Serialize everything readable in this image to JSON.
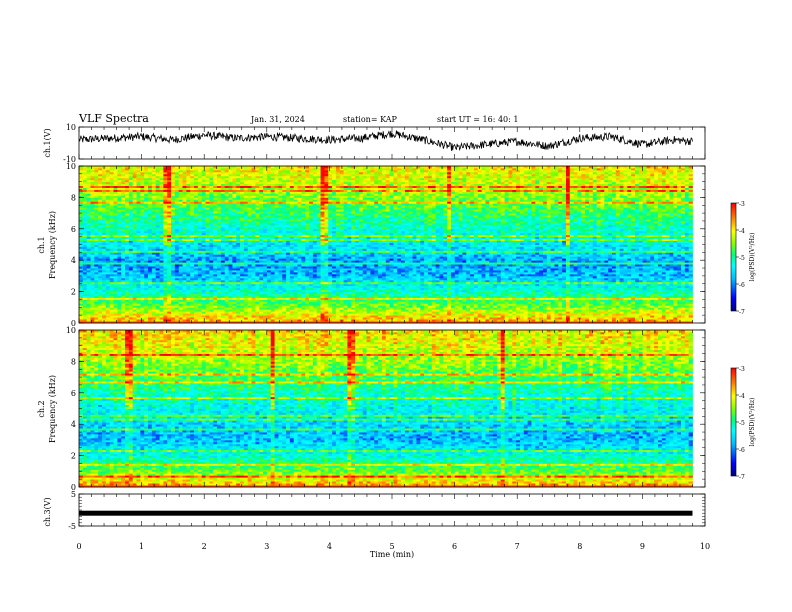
{
  "header": {
    "title": "VLF Spectra",
    "date": "Jan. 31, 2024",
    "station": "station= KAP",
    "start": "start  UT  =   16: 40: 1"
  },
  "colors": {
    "axis": "#000000",
    "waveform": "#000000",
    "colormap": [
      "#000080",
      "#0000ff",
      "#00bfff",
      "#00ffff",
      "#00ff80",
      "#7fff00",
      "#ffff00",
      "#ff8000",
      "#ff0000"
    ]
  },
  "chart_data": [
    {
      "type": "line",
      "panel": "ch1-waveform",
      "ylabel": "ch.1(V)",
      "ylim": [
        -10,
        10
      ],
      "y_tick_labels": [
        "10",
        "-10"
      ],
      "x": [
        0,
        0.5,
        1,
        1.5,
        2,
        2.5,
        3,
        3.5,
        4,
        4.5,
        5,
        5.5,
        6,
        6.5,
        7,
        7.5,
        8,
        8.5,
        9,
        9.5,
        9.8
      ],
      "values": [
        2,
        3,
        4,
        2,
        5,
        3,
        4,
        3,
        2,
        3,
        6,
        2,
        -3,
        -1,
        1,
        -2,
        3,
        4,
        -1,
        2,
        1
      ]
    },
    {
      "type": "heatmap",
      "panel": "ch1-spectrogram",
      "ylabel": "ch.1\nFrequency (kHz)",
      "ylim": [
        0,
        10
      ],
      "y_tick_labels": [
        "0",
        "2",
        "4",
        "6",
        "8",
        "10"
      ],
      "colorbar": {
        "label": "log(PSD)(V²/Hz)",
        "range": [
          -7,
          -3
        ],
        "tick_labels": [
          "-3",
          "-4",
          "-5",
          "-6",
          "-7"
        ]
      },
      "freq_bands_khz": [
        0,
        1,
        2,
        3,
        4,
        5,
        6,
        7,
        8,
        9,
        10
      ],
      "typical_log_psd": [
        -3.5,
        -4.5,
        -5.3,
        -5.9,
        -6.0,
        -5.6,
        -5.3,
        -4.9,
        -4.5,
        -4.2,
        -4.0
      ]
    },
    {
      "type": "heatmap",
      "panel": "ch2-spectrogram",
      "ylabel": "ch.2\nFrequency (kHz)",
      "ylim": [
        0,
        10
      ],
      "y_tick_labels": [
        "0",
        "2",
        "4",
        "6",
        "8",
        "10"
      ],
      "colorbar": {
        "label": "log(PSD)(V²/Hz)",
        "range": [
          -7,
          -3
        ],
        "tick_labels": [
          "-3",
          "-4",
          "-5",
          "-6",
          "-7"
        ]
      },
      "freq_bands_khz": [
        0,
        1,
        2,
        3,
        4,
        5,
        6,
        7,
        8,
        9,
        10
      ],
      "typical_log_psd": [
        -3.5,
        -4.6,
        -5.4,
        -5.9,
        -5.8,
        -5.5,
        -5.2,
        -4.8,
        -4.4,
        -4.1,
        -3.9
      ]
    },
    {
      "type": "line",
      "panel": "ch3-waveform",
      "ylabel": "ch.3(V)",
      "ylim": [
        -5,
        5
      ],
      "y_tick_labels": [
        "5",
        "-5"
      ],
      "x": [
        0,
        9.8
      ],
      "values": [
        -1,
        -1
      ]
    }
  ],
  "time_axis": {
    "xlabel": "Time (min)",
    "xlim": [
      0,
      10
    ],
    "tick_labels": [
      "0",
      "1",
      "2",
      "3",
      "4",
      "5",
      "6",
      "7",
      "8",
      "9",
      "10"
    ]
  }
}
